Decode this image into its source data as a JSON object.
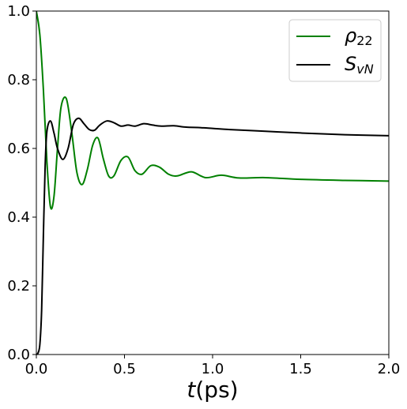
{
  "chart_data": {
    "type": "line",
    "title": "",
    "xlabel_main": "t",
    "xlabel_unit": "(ps)",
    "ylabel": "",
    "xlim": [
      0,
      2.0
    ],
    "ylim": [
      0,
      1.0
    ],
    "xticks": [
      0.0,
      0.5,
      1.0,
      1.5,
      2.0
    ],
    "xtick_labels": [
      "0.0",
      "0.5",
      "1.0",
      "1.5",
      "2.0"
    ],
    "yticks": [
      0.0,
      0.2,
      0.4,
      0.6,
      0.8,
      1.0
    ],
    "ytick_labels": [
      "0.0",
      "0.2",
      "0.4",
      "0.6",
      "0.8",
      "1.0"
    ],
    "grid": false,
    "legend_position": "top-right",
    "series": [
      {
        "key": "rho22",
        "legend_main": "ρ",
        "legend_sub": "22",
        "color": "#008000",
        "x": [
          0.0,
          0.02,
          0.04,
          0.06,
          0.08,
          0.1,
          0.12,
          0.14,
          0.17,
          0.2,
          0.23,
          0.26,
          0.29,
          0.32,
          0.35,
          0.38,
          0.41,
          0.44,
          0.48,
          0.52,
          0.56,
          0.6,
          0.65,
          0.7,
          0.75,
          0.8,
          0.88,
          0.96,
          1.05,
          1.15,
          1.3,
          1.5,
          1.75,
          2.0
        ],
        "y": [
          1.0,
          0.93,
          0.77,
          0.56,
          0.43,
          0.46,
          0.6,
          0.72,
          0.745,
          0.65,
          0.53,
          0.495,
          0.54,
          0.61,
          0.63,
          0.57,
          0.52,
          0.52,
          0.565,
          0.575,
          0.535,
          0.525,
          0.55,
          0.545,
          0.525,
          0.52,
          0.532,
          0.515,
          0.522,
          0.514,
          0.515,
          0.51,
          0.507,
          0.505
        ]
      },
      {
        "key": "svn",
        "legend_main": "S",
        "legend_sub": "vN",
        "color": "#000000",
        "x": [
          0.0,
          0.01,
          0.02,
          0.03,
          0.04,
          0.05,
          0.06,
          0.08,
          0.1,
          0.12,
          0.15,
          0.18,
          0.21,
          0.24,
          0.27,
          0.3,
          0.33,
          0.36,
          0.4,
          0.44,
          0.48,
          0.52,
          0.56,
          0.61,
          0.66,
          0.71,
          0.78,
          0.85,
          0.95,
          1.1,
          1.3,
          1.5,
          1.75,
          2.0
        ],
        "y": [
          0.0,
          0.005,
          0.03,
          0.13,
          0.35,
          0.55,
          0.65,
          0.68,
          0.645,
          0.6,
          0.568,
          0.6,
          0.67,
          0.688,
          0.672,
          0.655,
          0.653,
          0.668,
          0.68,
          0.675,
          0.665,
          0.668,
          0.665,
          0.672,
          0.668,
          0.665,
          0.666,
          0.662,
          0.66,
          0.655,
          0.65,
          0.645,
          0.64,
          0.637
        ]
      }
    ]
  }
}
